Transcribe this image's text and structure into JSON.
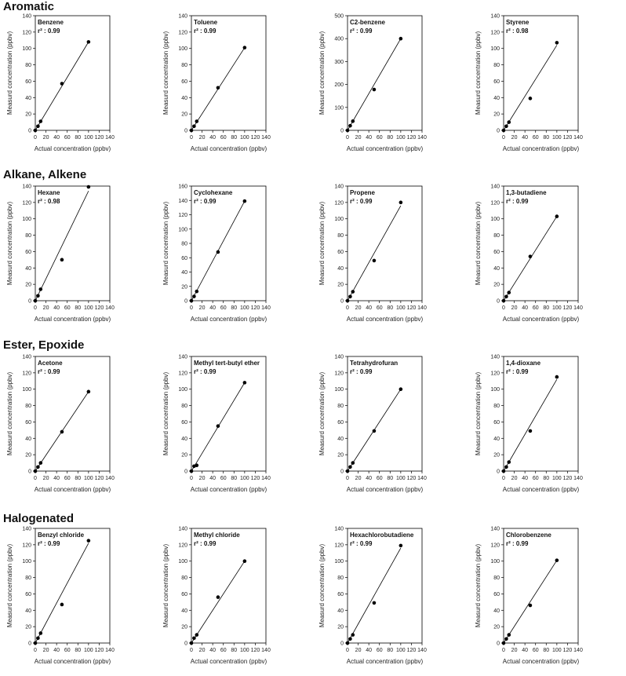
{
  "sections": [
    {
      "title": "Aromatic"
    },
    {
      "title": "Alkane, Alkene"
    },
    {
      "title": "Ester, Epoxide"
    },
    {
      "title": "Halogenated"
    }
  ],
  "chart_data": [
    {
      "type": "scatter",
      "title": "Benzene",
      "annotation": "r² : 0.99",
      "xlabel": "Actual concentration (ppbv)",
      "ylabel": "Measurd concentration (ppbv)",
      "xlim": [
        0,
        140
      ],
      "ylim": [
        0,
        140
      ],
      "xticks": [
        0,
        20,
        40,
        60,
        80,
        100,
        120,
        140
      ],
      "yticks": [
        0,
        20,
        40,
        60,
        80,
        100,
        120,
        140
      ],
      "points": [
        {
          "x": 0,
          "y": 0
        },
        {
          "x": 5,
          "y": 5
        },
        {
          "x": 10,
          "y": 11
        },
        {
          "x": 50,
          "y": 57
        },
        {
          "x": 100,
          "y": 108
        }
      ],
      "fit": [
        {
          "x": 0,
          "y": 0
        },
        {
          "x": 100,
          "y": 108
        }
      ]
    },
    {
      "type": "scatter",
      "title": "Toluene",
      "annotation": "r² : 0.99",
      "xlabel": "Actual concentration (ppbv)",
      "ylabel": "Measurd concentration (ppbv)",
      "xlim": [
        0,
        140
      ],
      "ylim": [
        0,
        140
      ],
      "xticks": [
        0,
        20,
        40,
        60,
        80,
        100,
        120,
        140
      ],
      "yticks": [
        0,
        20,
        40,
        60,
        80,
        100,
        120,
        140
      ],
      "points": [
        {
          "x": 0,
          "y": 0
        },
        {
          "x": 5,
          "y": 5
        },
        {
          "x": 10,
          "y": 11
        },
        {
          "x": 50,
          "y": 52
        },
        {
          "x": 100,
          "y": 101
        }
      ],
      "fit": [
        {
          "x": 0,
          "y": 0
        },
        {
          "x": 100,
          "y": 101
        }
      ]
    },
    {
      "type": "scatter",
      "title": "C2-benzene",
      "annotation": "r² : 0.99",
      "xlabel": "Actual concentration (ppbv)",
      "ylabel": "Measurd concentration (ppbv)",
      "xlim": [
        0,
        140
      ],
      "ylim": [
        0,
        500
      ],
      "xticks": [
        0,
        20,
        40,
        60,
        80,
        100,
        120,
        140
      ],
      "yticks": [
        0,
        100,
        200,
        300,
        400,
        500
      ],
      "points": [
        {
          "x": 0,
          "y": 0
        },
        {
          "x": 5,
          "y": 20
        },
        {
          "x": 10,
          "y": 40
        },
        {
          "x": 50,
          "y": 178
        },
        {
          "x": 100,
          "y": 400
        }
      ],
      "fit": [
        {
          "x": 0,
          "y": 0
        },
        {
          "x": 100,
          "y": 400
        }
      ]
    },
    {
      "type": "scatter",
      "title": "Styrene",
      "annotation": "r² : 0.98",
      "xlabel": "Actual concentration (ppbv)",
      "ylabel": "Measurd concentration (ppbv)",
      "xlim": [
        0,
        140
      ],
      "ylim": [
        0,
        140
      ],
      "xticks": [
        0,
        20,
        40,
        60,
        80,
        100,
        120,
        140
      ],
      "yticks": [
        0,
        20,
        40,
        60,
        80,
        100,
        120,
        140
      ],
      "points": [
        {
          "x": 0,
          "y": 0
        },
        {
          "x": 5,
          "y": 5
        },
        {
          "x": 10,
          "y": 10
        },
        {
          "x": 50,
          "y": 39
        },
        {
          "x": 100,
          "y": 107
        }
      ],
      "fit": [
        {
          "x": 0,
          "y": 0
        },
        {
          "x": 100,
          "y": 104
        }
      ]
    },
    {
      "type": "scatter",
      "title": "Hexane",
      "annotation": "r² : 0.98",
      "xlabel": "Actual concentration (ppbv)",
      "ylabel": "Measurd concentration (ppbv)",
      "xlim": [
        0,
        140
      ],
      "ylim": [
        0,
        140
      ],
      "xticks": [
        0,
        20,
        40,
        60,
        80,
        100,
        120,
        140
      ],
      "yticks": [
        0,
        20,
        40,
        60,
        80,
        100,
        120,
        140
      ],
      "points": [
        {
          "x": 0,
          "y": 0
        },
        {
          "x": 5,
          "y": 6
        },
        {
          "x": 10,
          "y": 14
        },
        {
          "x": 50,
          "y": 50
        },
        {
          "x": 100,
          "y": 139
        }
      ],
      "fit": [
        {
          "x": 0,
          "y": 0
        },
        {
          "x": 100,
          "y": 134
        }
      ]
    },
    {
      "type": "scatter",
      "title": "Cyclohexane",
      "annotation": "r² : 0.99",
      "xlabel": "Actual concentration (ppbv)",
      "ylabel": "Measurd concentration (ppbv)",
      "xlim": [
        0,
        140
      ],
      "ylim": [
        0,
        160
      ],
      "xticks": [
        0,
        20,
        40,
        60,
        80,
        100,
        120,
        140
      ],
      "yticks": [
        0,
        20,
        40,
        60,
        80,
        100,
        120,
        140,
        160
      ],
      "points": [
        {
          "x": 0,
          "y": 0
        },
        {
          "x": 5,
          "y": 6
        },
        {
          "x": 10,
          "y": 13
        },
        {
          "x": 50,
          "y": 68
        },
        {
          "x": 100,
          "y": 139
        }
      ],
      "fit": [
        {
          "x": 0,
          "y": 0
        },
        {
          "x": 100,
          "y": 139
        }
      ]
    },
    {
      "type": "scatter",
      "title": "Propene",
      "annotation": "r² : 0.99",
      "xlabel": "Actual concentration (ppbv)",
      "ylabel": "Measurd concentration (ppbv)",
      "xlim": [
        0,
        140
      ],
      "ylim": [
        0,
        140
      ],
      "xticks": [
        0,
        20,
        40,
        60,
        80,
        100,
        120,
        140
      ],
      "yticks": [
        0,
        20,
        40,
        60,
        80,
        100,
        120,
        140
      ],
      "points": [
        {
          "x": 0,
          "y": 0
        },
        {
          "x": 5,
          "y": 5
        },
        {
          "x": 10,
          "y": 11
        },
        {
          "x": 50,
          "y": 49
        },
        {
          "x": 100,
          "y": 120
        }
      ],
      "fit": [
        {
          "x": 0,
          "y": 0
        },
        {
          "x": 100,
          "y": 116
        }
      ]
    },
    {
      "type": "scatter",
      "title": "1,3-butadiene",
      "annotation": "r² : 0.99",
      "xlabel": "Actual concentration (ppbv)",
      "ylabel": "Measurd concentration (ppbv)",
      "xlim": [
        0,
        140
      ],
      "ylim": [
        0,
        140
      ],
      "xticks": [
        0,
        20,
        40,
        60,
        80,
        100,
        120,
        140
      ],
      "yticks": [
        0,
        20,
        40,
        60,
        80,
        100,
        120,
        140
      ],
      "points": [
        {
          "x": 0,
          "y": 0
        },
        {
          "x": 5,
          "y": 5
        },
        {
          "x": 10,
          "y": 10
        },
        {
          "x": 50,
          "y": 54
        },
        {
          "x": 100,
          "y": 103
        }
      ],
      "fit": [
        {
          "x": 0,
          "y": 0
        },
        {
          "x": 100,
          "y": 103
        }
      ]
    },
    {
      "type": "scatter",
      "title": "Acetone",
      "annotation": "r² : 0.99",
      "xlabel": "Actual concentration (ppbv)",
      "ylabel": "Measurd concentration (ppbv)",
      "xlim": [
        0,
        140
      ],
      "ylim": [
        0,
        140
      ],
      "xticks": [
        0,
        20,
        40,
        60,
        80,
        100,
        120,
        140
      ],
      "yticks": [
        0,
        20,
        40,
        60,
        80,
        100,
        120,
        140
      ],
      "points": [
        {
          "x": 0,
          "y": 0
        },
        {
          "x": 5,
          "y": 5
        },
        {
          "x": 10,
          "y": 10
        },
        {
          "x": 50,
          "y": 48
        },
        {
          "x": 100,
          "y": 97
        }
      ],
      "fit": [
        {
          "x": 0,
          "y": 0
        },
        {
          "x": 100,
          "y": 97
        }
      ]
    },
    {
      "type": "scatter",
      "title": "Methyl tert-butyl ether",
      "annotation": "r² : 0.99",
      "xlabel": "Actual concentration (ppbv)",
      "ylabel": "Measurd concentration (ppbv)",
      "xlim": [
        0,
        140
      ],
      "ylim": [
        0,
        140
      ],
      "xticks": [
        0,
        20,
        40,
        60,
        80,
        100,
        120,
        140
      ],
      "yticks": [
        0,
        20,
        40,
        60,
        80,
        100,
        120,
        140
      ],
      "points": [
        {
          "x": 0,
          "y": 0
        },
        {
          "x": 5,
          "y": 6
        },
        {
          "x": 10,
          "y": 7
        },
        {
          "x": 50,
          "y": 55
        },
        {
          "x": 100,
          "y": 108
        }
      ],
      "fit": [
        {
          "x": 0,
          "y": 0
        },
        {
          "x": 100,
          "y": 108
        }
      ]
    },
    {
      "type": "scatter",
      "title": "Tetrahydrofuran",
      "annotation": "r² : 0.99",
      "xlabel": "Actual concentration (ppbv)",
      "ylabel": "Measurd concentration (ppbv)",
      "xlim": [
        0,
        140
      ],
      "ylim": [
        0,
        140
      ],
      "xticks": [
        0,
        20,
        40,
        60,
        80,
        100,
        120,
        140
      ],
      "yticks": [
        0,
        20,
        40,
        60,
        80,
        100,
        120,
        140
      ],
      "points": [
        {
          "x": 0,
          "y": 0
        },
        {
          "x": 5,
          "y": 5
        },
        {
          "x": 10,
          "y": 10
        },
        {
          "x": 50,
          "y": 49
        },
        {
          "x": 100,
          "y": 100
        }
      ],
      "fit": [
        {
          "x": 0,
          "y": 0
        },
        {
          "x": 100,
          "y": 100
        }
      ]
    },
    {
      "type": "scatter",
      "title": "1,4-dioxane",
      "annotation": "r² : 0.99",
      "xlabel": "Actual concentration (ppbv)",
      "ylabel": "Measurd concentration (ppbv)",
      "xlim": [
        0,
        140
      ],
      "ylim": [
        0,
        140
      ],
      "xticks": [
        0,
        20,
        40,
        60,
        80,
        100,
        120,
        140
      ],
      "yticks": [
        0,
        20,
        40,
        60,
        80,
        100,
        120,
        140
      ],
      "points": [
        {
          "x": 0,
          "y": 0
        },
        {
          "x": 5,
          "y": 5
        },
        {
          "x": 10,
          "y": 11
        },
        {
          "x": 50,
          "y": 49
        },
        {
          "x": 100,
          "y": 115
        }
      ],
      "fit": [
        {
          "x": 0,
          "y": 0
        },
        {
          "x": 100,
          "y": 112
        }
      ]
    },
    {
      "type": "scatter",
      "title": "Benzyl chloride",
      "annotation": "r² : 0.99",
      "xlabel": "Actual concentration (ppbv)",
      "ylabel": "Measurd concentration (ppbv)",
      "xlim": [
        0,
        140
      ],
      "ylim": [
        0,
        140
      ],
      "xticks": [
        0,
        20,
        40,
        60,
        80,
        100,
        120,
        140
      ],
      "yticks": [
        0,
        20,
        40,
        60,
        80,
        100,
        120,
        140
      ],
      "points": [
        {
          "x": 0,
          "y": 0
        },
        {
          "x": 5,
          "y": 6
        },
        {
          "x": 10,
          "y": 12
        },
        {
          "x": 50,
          "y": 47
        },
        {
          "x": 100,
          "y": 125
        }
      ],
      "fit": [
        {
          "x": 0,
          "y": 0
        },
        {
          "x": 100,
          "y": 122
        }
      ]
    },
    {
      "type": "scatter",
      "title": "Methyl chloride",
      "annotation": "r² : 0.99",
      "xlabel": "Actual concentration (ppbv)",
      "ylabel": "Measurd concentration (ppbv)",
      "xlim": [
        0,
        140
      ],
      "ylim": [
        0,
        140
      ],
      "xticks": [
        0,
        20,
        40,
        60,
        80,
        100,
        120,
        140
      ],
      "yticks": [
        0,
        20,
        40,
        60,
        80,
        100,
        120,
        140
      ],
      "points": [
        {
          "x": 0,
          "y": 0
        },
        {
          "x": 5,
          "y": 6
        },
        {
          "x": 10,
          "y": 10
        },
        {
          "x": 50,
          "y": 56
        },
        {
          "x": 100,
          "y": 100
        }
      ],
      "fit": [
        {
          "x": 0,
          "y": 0
        },
        {
          "x": 100,
          "y": 100
        }
      ]
    },
    {
      "type": "scatter",
      "title": "Hexachlorobutadiene",
      "annotation": "r² : 0.99",
      "xlabel": "Actual concentration (ppbv)",
      "ylabel": "Measurd concentration (ppbv)",
      "xlim": [
        0,
        140
      ],
      "ylim": [
        0,
        140
      ],
      "xticks": [
        0,
        20,
        40,
        60,
        80,
        100,
        120,
        140
      ],
      "yticks": [
        0,
        20,
        40,
        60,
        80,
        100,
        120,
        140
      ],
      "points": [
        {
          "x": 0,
          "y": 0
        },
        {
          "x": 5,
          "y": 5
        },
        {
          "x": 10,
          "y": 10
        },
        {
          "x": 50,
          "y": 49
        },
        {
          "x": 100,
          "y": 119
        }
      ],
      "fit": [
        {
          "x": 0,
          "y": 0
        },
        {
          "x": 100,
          "y": 116
        }
      ]
    },
    {
      "type": "scatter",
      "title": "Chlorobenzene",
      "annotation": "r² : 0.99",
      "xlabel": "Actual concentration (ppbv)",
      "ylabel": "Measurd concentration (ppbv)",
      "xlim": [
        0,
        140
      ],
      "ylim": [
        0,
        140
      ],
      "xticks": [
        0,
        20,
        40,
        60,
        80,
        100,
        120,
        140
      ],
      "yticks": [
        0,
        20,
        40,
        60,
        80,
        100,
        120,
        140
      ],
      "points": [
        {
          "x": 0,
          "y": 0
        },
        {
          "x": 5,
          "y": 5
        },
        {
          "x": 10,
          "y": 10
        },
        {
          "x": 50,
          "y": 46
        },
        {
          "x": 100,
          "y": 101
        }
      ],
      "fit": [
        {
          "x": 0,
          "y": 0
        },
        {
          "x": 100,
          "y": 101
        }
      ]
    }
  ]
}
